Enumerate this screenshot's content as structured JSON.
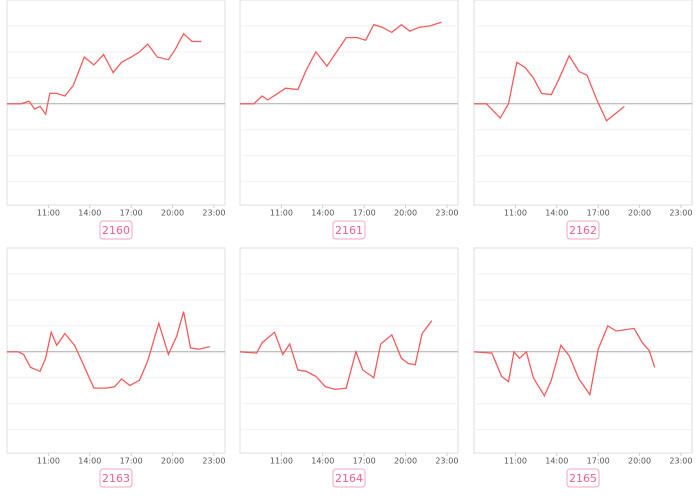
{
  "chart_data": [
    {
      "type": "line",
      "title": "2160",
      "color": "#f25c5c",
      "grid": true,
      "xlim": [
        8,
        23.8
      ],
      "ylim": [
        -3.9,
        4
      ],
      "yticks": [
        -3,
        -2,
        -1,
        0,
        1,
        2,
        3
      ],
      "xticks": [
        {
          "value": 11,
          "label": "11:00"
        },
        {
          "value": 14,
          "label": "14:00"
        },
        {
          "value": 17,
          "label": "17:00"
        },
        {
          "value": 20,
          "label": "20:00"
        },
        {
          "value": 23,
          "label": "23:00"
        }
      ],
      "x": [
        8.0,
        9.0,
        9.6,
        10.0,
        10.4,
        10.8,
        11.1,
        11.6,
        12.2,
        12.8,
        13.6,
        14.3,
        15.0,
        15.7,
        16.3,
        17.0,
        17.6,
        18.2,
        18.9,
        19.7,
        20.2,
        20.8,
        21.4,
        22.1
      ],
      "values": [
        0,
        0,
        0.1,
        -0.2,
        -0.1,
        -0.4,
        0.4,
        0.4,
        0.3,
        0.7,
        1.8,
        1.5,
        1.9,
        1.2,
        1.6,
        1.8,
        2.0,
        2.3,
        1.8,
        1.7,
        2.1,
        2.7,
        2.4,
        2.4
      ]
    },
    {
      "type": "line",
      "title": "2161",
      "color": "#f25c5c",
      "grid": true,
      "xlim": [
        8,
        23.8
      ],
      "ylim": [
        -3.9,
        4
      ],
      "yticks": [
        -3,
        -2,
        -1,
        0,
        1,
        2,
        3
      ],
      "xticks": [
        {
          "value": 11,
          "label": "11:00"
        },
        {
          "value": 14,
          "label": "14:00"
        },
        {
          "value": 17,
          "label": "17:00"
        },
        {
          "value": 20,
          "label": "20:00"
        },
        {
          "value": 23,
          "label": "23:00"
        }
      ],
      "x": [
        8.0,
        9.0,
        9.6,
        10.0,
        10.6,
        11.3,
        12.2,
        12.8,
        13.5,
        14.3,
        15.0,
        15.7,
        16.5,
        17.1,
        17.7,
        18.3,
        19.0,
        19.7,
        20.3,
        21.0,
        21.8,
        22.6
      ],
      "values": [
        0,
        0,
        0.3,
        0.15,
        0.35,
        0.6,
        0.55,
        1.3,
        2.0,
        1.45,
        2.0,
        2.55,
        2.55,
        2.45,
        3.05,
        2.95,
        2.75,
        3.05,
        2.8,
        2.95,
        3.0,
        3.15
      ]
    },
    {
      "type": "line",
      "title": "2162",
      "color": "#f25c5c",
      "grid": true,
      "xlim": [
        8,
        23.8
      ],
      "ylim": [
        -3.9,
        4
      ],
      "yticks": [
        -3,
        -2,
        -1,
        0,
        1,
        2,
        3
      ],
      "xticks": [
        {
          "value": 11,
          "label": "11:00"
        },
        {
          "value": 14,
          "label": "14:00"
        },
        {
          "value": 17,
          "label": "17:00"
        },
        {
          "value": 20,
          "label": "20:00"
        },
        {
          "value": 23,
          "label": "23:00"
        }
      ],
      "x": [
        8.0,
        8.9,
        9.9,
        10.5,
        11.1,
        11.7,
        12.3,
        12.9,
        13.6,
        14.2,
        14.9,
        15.6,
        16.2,
        16.9,
        17.6,
        18.2,
        18.9
      ],
      "values": [
        0,
        0,
        -0.55,
        0,
        1.6,
        1.4,
        1.0,
        0.4,
        0.35,
        1.0,
        1.85,
        1.25,
        1.1,
        0.15,
        -0.65,
        -0.4,
        -0.1
      ]
    },
    {
      "type": "line",
      "title": "2163",
      "color": "#f25c5c",
      "grid": true,
      "xlim": [
        8,
        23.8
      ],
      "ylim": [
        -3.9,
        4
      ],
      "yticks": [
        -3,
        -2,
        -1,
        0,
        1,
        2,
        3
      ],
      "xticks": [
        {
          "value": 11,
          "label": "11:00"
        },
        {
          "value": 14,
          "label": "14:00"
        },
        {
          "value": 17,
          "label": "17:00"
        },
        {
          "value": 20,
          "label": "20:00"
        },
        {
          "value": 23,
          "label": "23:00"
        }
      ],
      "x": [
        8.0,
        8.8,
        9.2,
        9.7,
        10.4,
        10.8,
        11.2,
        11.6,
        12.2,
        12.9,
        13.5,
        14.3,
        15.2,
        15.8,
        16.3,
        16.9,
        17.6,
        18.2,
        19.0,
        19.7,
        20.3,
        20.8,
        21.3,
        21.9,
        22.7
      ],
      "values": [
        0,
        0,
        -0.1,
        -0.6,
        -0.75,
        -0.25,
        0.75,
        0.25,
        0.7,
        0.25,
        -0.45,
        -1.4,
        -1.4,
        -1.35,
        -1.05,
        -1.3,
        -1.1,
        -0.35,
        1.1,
        -0.1,
        0.6,
        1.55,
        0.15,
        0.1,
        0.2
      ]
    },
    {
      "type": "line",
      "title": "2164",
      "color": "#f25c5c",
      "grid": true,
      "xlim": [
        8,
        23.8
      ],
      "ylim": [
        -3.9,
        4
      ],
      "yticks": [
        -3,
        -2,
        -1,
        0,
        1,
        2,
        3
      ],
      "xticks": [
        {
          "value": 11,
          "label": "11:00"
        },
        {
          "value": 14,
          "label": "14:00"
        },
        {
          "value": 17,
          "label": "17:00"
        },
        {
          "value": 20,
          "label": "20:00"
        },
        {
          "value": 23,
          "label": "23:00"
        }
      ],
      "x": [
        8.0,
        9.2,
        9.6,
        10.5,
        11.1,
        11.6,
        12.2,
        12.8,
        13.5,
        14.2,
        14.9,
        15.7,
        16.4,
        16.9,
        17.7,
        18.2,
        19.0,
        19.7,
        20.2,
        20.7,
        21.2,
        21.9
      ],
      "values": [
        0,
        -0.05,
        0.35,
        0.75,
        -0.1,
        0.3,
        -0.7,
        -0.75,
        -0.95,
        -1.35,
        -1.45,
        -1.4,
        0,
        -0.7,
        -1.0,
        0.3,
        0.65,
        -0.25,
        -0.45,
        -0.5,
        0.7,
        1.2
      ]
    },
    {
      "type": "line",
      "title": "2165",
      "color": "#f25c5c",
      "grid": true,
      "xlim": [
        8,
        23.8
      ],
      "ylim": [
        -3.9,
        4
      ],
      "yticks": [
        -3,
        -2,
        -1,
        0,
        1,
        2,
        3
      ],
      "xticks": [
        {
          "value": 11,
          "label": "11:00"
        },
        {
          "value": 14,
          "label": "14:00"
        },
        {
          "value": 17,
          "label": "17:00"
        },
        {
          "value": 20,
          "label": "20:00"
        },
        {
          "value": 23,
          "label": "23:00"
        }
      ],
      "x": [
        8.0,
        9.3,
        10.0,
        10.5,
        10.9,
        11.3,
        11.8,
        12.3,
        13.1,
        13.6,
        14.3,
        14.9,
        15.6,
        16.4,
        17.0,
        17.7,
        18.3,
        19.6,
        20.2,
        20.7,
        21.1
      ],
      "values": [
        0,
        -0.05,
        -0.95,
        -1.15,
        0,
        -0.25,
        0,
        -1.0,
        -1.7,
        -1.1,
        0.25,
        -0.15,
        -1.05,
        -1.65,
        0.1,
        1.0,
        0.8,
        0.9,
        0.35,
        0.05,
        -0.6
      ]
    }
  ]
}
